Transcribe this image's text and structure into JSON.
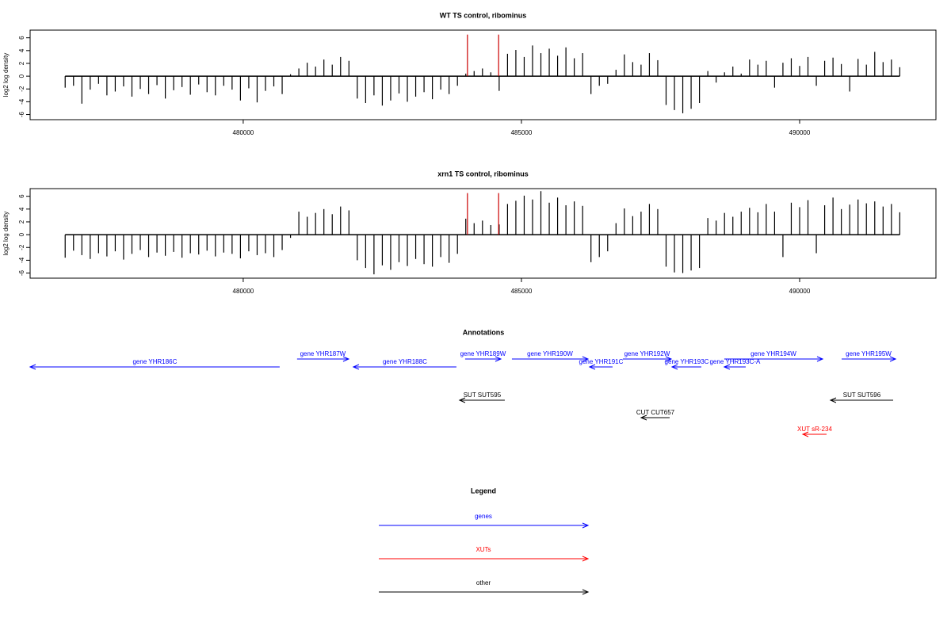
{
  "chart_data": [
    {
      "type": "bar",
      "title": "WT TS control, ribominus",
      "y_label": "log2 log density",
      "xlim": [
        476170,
        492450
      ],
      "ylim": [
        -6.8,
        7.2
      ],
      "xticks": [
        480000,
        485000,
        490000
      ],
      "yticks": [
        -6,
        -4,
        -2,
        0,
        2,
        4,
        6
      ],
      "series": [
        {
          "color": "#000000",
          "x": [
            476800,
            476950,
            477100,
            477250,
            477400,
            477550,
            477700,
            477850,
            478000,
            478150,
            478300,
            478450,
            478600,
            478750,
            478900,
            479050,
            479200,
            479350,
            479500,
            479650,
            479800,
            479950,
            480100,
            480250,
            480400,
            480550,
            480700,
            480850,
            481000,
            481150,
            481300,
            481450,
            481600,
            481750,
            481900,
            482050,
            482200,
            482350,
            482500,
            482650,
            482800,
            482950,
            483100,
            483250,
            483400,
            483550,
            483700,
            483850,
            484000,
            484150,
            484300,
            484450,
            484600,
            484750,
            484900,
            485050,
            485200,
            485350,
            485500,
            485650,
            485800,
            485950,
            486100,
            486250,
            486400,
            486550,
            486700,
            486850,
            487000,
            487150,
            487300,
            487450,
            487600,
            487750,
            487900,
            488050,
            488200,
            488350,
            488500,
            488650,
            488800,
            488950,
            489100,
            489250,
            489400,
            489550,
            489700,
            489850,
            490000,
            490150,
            490300,
            490450,
            490600,
            490750,
            490900,
            491050,
            491200,
            491350,
            491500,
            491650,
            491800
          ],
          "values": [
            -1.8,
            -1.5,
            -4.3,
            -2.1,
            -1.2,
            -3.0,
            -2.4,
            -1.6,
            -3.2,
            -2.0,
            -2.8,
            -1.4,
            -3.5,
            -2.2,
            -1.7,
            -2.9,
            -1.3,
            -2.5,
            -3.0,
            -1.5,
            -2.1,
            -3.8,
            -1.9,
            -4.1,
            -2.3,
            -1.6,
            -2.8,
            0.3,
            1.2,
            2.1,
            1.5,
            2.6,
            1.8,
            3.0,
            2.4,
            -3.5,
            -4.2,
            -3.0,
            -4.6,
            -3.8,
            -2.7,
            -4.0,
            -3.2,
            -2.5,
            -3.6,
            -2.1,
            -2.8,
            -1.5,
            0.4,
            0.8,
            1.2,
            0.6,
            -2.3,
            3.5,
            4.1,
            3.0,
            4.8,
            3.6,
            4.3,
            3.2,
            4.5,
            2.8,
            3.6,
            -2.8,
            -1.5,
            -1.2,
            1.0,
            3.4,
            2.2,
            1.8,
            3.6,
            2.5,
            -4.5,
            -5.3,
            -5.8,
            -5.1,
            -4.2,
            0.8,
            -1.0,
            0.6,
            1.5,
            0.4,
            2.6,
            1.8,
            2.4,
            -1.8,
            2.1,
            2.8,
            1.6,
            3.0,
            -1.5,
            2.4,
            2.9,
            1.9,
            -2.4,
            2.7,
            1.8,
            3.8,
            2.2,
            2.6,
            1.4
          ]
        },
        {
          "color": "#cc0000",
          "x": [
            484030,
            484590
          ],
          "values": [
            6.5,
            6.5
          ]
        }
      ]
    },
    {
      "type": "bar",
      "title": "xrn1 TS control, ribominus",
      "y_label": "log2 log density",
      "xlim": [
        476170,
        492450
      ],
      "ylim": [
        -6.8,
        7.2
      ],
      "xticks": [
        480000,
        485000,
        490000
      ],
      "yticks": [
        -6,
        -4,
        -2,
        0,
        2,
        4,
        6
      ],
      "series": [
        {
          "color": "#000000",
          "x": [
            476800,
            476950,
            477100,
            477250,
            477400,
            477550,
            477700,
            477850,
            478000,
            478150,
            478300,
            478450,
            478600,
            478750,
            478900,
            479050,
            479200,
            479350,
            479500,
            479650,
            479800,
            479950,
            480100,
            480250,
            480400,
            480550,
            480700,
            480850,
            481000,
            481150,
            481300,
            481450,
            481600,
            481750,
            481900,
            482050,
            482200,
            482350,
            482500,
            482650,
            482800,
            482950,
            483100,
            483250,
            483400,
            483550,
            483700,
            483850,
            484000,
            484150,
            484300,
            484450,
            484600,
            484750,
            484900,
            485050,
            485200,
            485350,
            485500,
            485650,
            485800,
            485950,
            486100,
            486250,
            486400,
            486550,
            486700,
            486850,
            487000,
            487150,
            487300,
            487450,
            487600,
            487750,
            487900,
            488050,
            488200,
            488350,
            488500,
            488650,
            488800,
            488950,
            489100,
            489250,
            489400,
            489550,
            489700,
            489850,
            490000,
            490150,
            490300,
            490450,
            490600,
            490750,
            490900,
            491050,
            491200,
            491350,
            491500,
            491650,
            491800
          ],
          "values": [
            -3.6,
            -2.5,
            -3.2,
            -3.8,
            -2.9,
            -3.4,
            -2.6,
            -3.9,
            -3.0,
            -2.4,
            -3.5,
            -2.8,
            -3.3,
            -2.7,
            -3.6,
            -2.9,
            -3.1,
            -2.5,
            -3.4,
            -2.8,
            -3.0,
            -3.7,
            -2.6,
            -3.2,
            -2.9,
            -3.5,
            -2.4,
            -0.5,
            3.6,
            2.8,
            3.4,
            4.0,
            3.2,
            4.4,
            3.8,
            -4.0,
            -5.2,
            -6.2,
            -4.8,
            -5.5,
            -4.3,
            -4.9,
            -3.8,
            -4.6,
            -5.0,
            -3.5,
            -4.4,
            -3.0,
            2.5,
            1.8,
            2.2,
            1.5,
            1.6,
            4.8,
            5.3,
            6.1,
            5.5,
            6.8,
            5.0,
            5.8,
            4.6,
            5.2,
            4.5,
            -4.3,
            -3.5,
            -2.6,
            1.8,
            4.1,
            2.9,
            3.6,
            4.8,
            4.0,
            -5.0,
            -5.9,
            -6.0,
            -5.6,
            -5.2,
            2.6,
            2.2,
            3.4,
            2.8,
            3.6,
            4.2,
            3.5,
            4.8,
            3.6,
            -3.5,
            5.0,
            4.3,
            5.4,
            -2.9,
            4.6,
            5.8,
            4.0,
            4.7,
            5.5,
            4.9,
            5.2,
            4.4,
            4.8,
            3.5
          ]
        },
        {
          "color": "#cc0000",
          "x": [
            484030,
            484590
          ],
          "values": [
            6.5,
            6.5
          ]
        }
      ]
    }
  ],
  "annotations": {
    "title": "Annotations",
    "features": [
      {
        "label": "gene YHR186C",
        "start": 476170,
        "end": 480655,
        "strand": "-",
        "color": "#0000ff"
      },
      {
        "label": "gene YHR187W",
        "start": 480968,
        "end": 481895,
        "strand": "+",
        "color": "#0000ff"
      },
      {
        "label": "gene YHR188C",
        "start": 481980,
        "end": 483832,
        "strand": "-",
        "color": "#0000ff"
      },
      {
        "label": "gene YHR189W",
        "start": 483988,
        "end": 484630,
        "strand": "+",
        "color": "#0000ff"
      },
      {
        "label": "gene YHR190W",
        "start": 484829,
        "end": 486196,
        "strand": "+",
        "color": "#0000ff"
      },
      {
        "label": "gene YHR191C",
        "start": 486225,
        "end": 486638,
        "strand": "-",
        "color": "#0000ff"
      },
      {
        "label": "gene YHR192W",
        "start": 486823,
        "end": 487692,
        "strand": "+",
        "color": "#0000ff"
      },
      {
        "label": "gene YHR193C",
        "start": 487707,
        "end": 488234,
        "strand": "-",
        "color": "#0000ff"
      },
      {
        "label": "gene YHR193C-A",
        "start": 488646,
        "end": 489031,
        "strand": "-",
        "color": "#0000ff"
      },
      {
        "label": "gene YHR194W",
        "start": 488646,
        "end": 490413,
        "strand": "+",
        "color": "#0000ff"
      },
      {
        "label": "gene YHR195W",
        "start": 490755,
        "end": 491724,
        "strand": "+",
        "color": "#0000ff"
      },
      {
        "label": "SUT SUT595",
        "start": 483889,
        "end": 484701,
        "strand": "-",
        "color": "#000000"
      },
      {
        "label": "CUT CUT657",
        "start": 487151,
        "end": 487664,
        "strand": "-",
        "color": "#000000"
      },
      {
        "label": "SUT SUT596",
        "start": 490555,
        "end": 491681,
        "strand": "-",
        "color": "#000000"
      },
      {
        "label": "XUT sR-234",
        "start": 490057,
        "end": 490484,
        "strand": "-",
        "color": "#ff0000"
      }
    ]
  },
  "legend": {
    "title": "Legend",
    "entries": [
      {
        "label": "genes",
        "color": "#0000ff"
      },
      {
        "label": "XUTs",
        "color": "#ff0000"
      },
      {
        "label": "other",
        "color": "#000000"
      }
    ]
  }
}
